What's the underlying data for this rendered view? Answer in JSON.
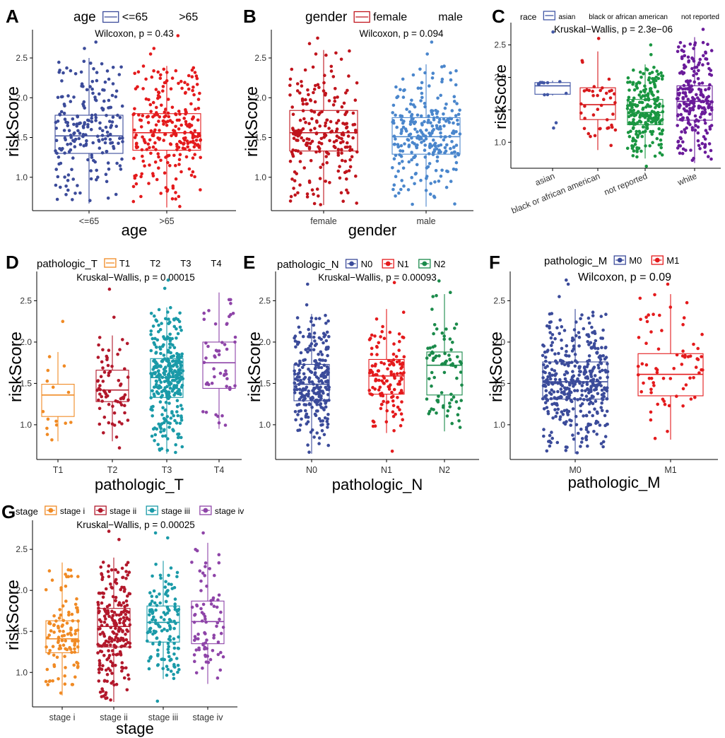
{
  "chart_data": [
    {
      "id": "A",
      "type": "boxplot",
      "letter": "A",
      "legend_title": "age",
      "legend_labels": [
        "<=65",
        ">65"
      ],
      "legend_style": "first-key-only",
      "test": "Wilcoxon, p = 0.43",
      "xlabel": "age",
      "ylabel": "riskScore",
      "ylim": [
        0.58,
        2.82
      ],
      "yticks": [
        "1.0",
        "1.5",
        "2.0",
        "2.5"
      ],
      "ytick_values": [
        1.0,
        1.5,
        2.0,
        2.5
      ],
      "categories": [
        "<=65",
        ">65"
      ],
      "colors": [
        "#3b4b9a",
        "#e41a1c"
      ],
      "n": [
        210,
        260
      ],
      "stats": [
        {
          "min": 0.67,
          "q1": 1.3,
          "median": 1.52,
          "q3": 1.78,
          "max": 2.5
        },
        {
          "min": 0.62,
          "q1": 1.34,
          "median": 1.56,
          "q3": 1.8,
          "max": 2.4
        }
      ],
      "outliers": [
        [
          2.62,
          2.7
        ],
        [
          2.55,
          2.62,
          2.78
        ]
      ]
    },
    {
      "id": "B",
      "type": "boxplot",
      "letter": "B",
      "legend_title": "gender",
      "legend_labels": [
        "female",
        "male"
      ],
      "legend_style": "first-key-only",
      "test": "Wilcoxon, p = 0.094",
      "xlabel": "gender",
      "ylabel": "riskScore",
      "ylim": [
        0.58,
        2.82
      ],
      "yticks": [
        "1.0",
        "1.5",
        "2.0",
        "2.5"
      ],
      "ytick_values": [
        1.0,
        1.5,
        2.0,
        2.5
      ],
      "categories": [
        "female",
        "male"
      ],
      "colors": [
        "#c0141c",
        "#4a86cc"
      ],
      "n": [
        230,
        260
      ],
      "stats": [
        {
          "min": 0.65,
          "q1": 1.33,
          "median": 1.56,
          "q3": 1.84,
          "max": 2.6
        },
        {
          "min": 0.63,
          "q1": 1.29,
          "median": 1.51,
          "q3": 1.75,
          "max": 2.42
        }
      ],
      "outliers": [
        [
          2.68,
          2.75
        ],
        [
          2.55,
          2.7
        ]
      ]
    },
    {
      "id": "C",
      "type": "boxplot",
      "letter": "C",
      "legend_title": "race",
      "legend_labels": [
        "asian",
        "black or african american",
        "not reported",
        "white"
      ],
      "legend_style": "first-key-only",
      "test": "Kruskal−Wallis, p = 2.3e−06",
      "xlabel": "",
      "ylabel": "riskScore",
      "ylim": [
        0.6,
        2.8
      ],
      "yticks": [
        "1.0",
        "1.5",
        "2.0",
        "2.5"
      ],
      "ytick_values": [
        1.0,
        1.5,
        2.0,
        2.5
      ],
      "categories": [
        "asian",
        "black or african american",
        "not reported",
        "white"
      ],
      "rotate_xticks": true,
      "colors": [
        "#4257a5",
        "#d7191c",
        "#1a9641",
        "#6a1b9a"
      ],
      "n": [
        10,
        40,
        230,
        220
      ],
      "stats": [
        {
          "min": 1.72,
          "q1": 1.74,
          "median": 1.87,
          "q3": 1.92,
          "max": 1.95
        },
        {
          "min": 0.88,
          "q1": 1.35,
          "median": 1.58,
          "q3": 1.84,
          "max": 2.4
        },
        {
          "min": 0.75,
          "q1": 1.27,
          "median": 1.46,
          "q3": 1.66,
          "max": 2.2
        },
        {
          "min": 0.68,
          "q1": 1.34,
          "median": 1.63,
          "q3": 1.87,
          "max": 2.62
        }
      ],
      "outliers": [
        [
          1.22,
          1.3,
          2.7
        ],
        [
          2.6
        ],
        [
          2.35,
          2.5,
          0.63
        ],
        [
          2.74
        ]
      ]
    },
    {
      "id": "D",
      "type": "boxplot",
      "letter": "D",
      "legend_title": "pathologic_T",
      "legend_labels": [
        "T1",
        "T2",
        "T3",
        "T4"
      ],
      "legend_style": "first-key-only",
      "test": "Kruskal−Wallis, p = 0.00015",
      "xlabel": "pathologic_T",
      "ylabel": "riskScore",
      "ylim": [
        0.58,
        2.82
      ],
      "yticks": [
        "1.0",
        "1.5",
        "2.0",
        "2.5"
      ],
      "ytick_values": [
        1.0,
        1.5,
        2.0,
        2.5
      ],
      "categories": [
        "T1",
        "T2",
        "T3",
        "T4"
      ],
      "colors": [
        "#f08a24",
        "#b2182b",
        "#1a9aa8",
        "#8e44a8"
      ],
      "n": [
        15,
        70,
        330,
        50
      ],
      "stats": [
        {
          "min": 0.8,
          "q1": 1.1,
          "median": 1.36,
          "q3": 1.49,
          "max": 1.88
        },
        {
          "min": 0.8,
          "q1": 1.28,
          "median": 1.42,
          "q3": 1.66,
          "max": 2.08
        },
        {
          "min": 0.65,
          "q1": 1.33,
          "median": 1.57,
          "q3": 1.8,
          "max": 2.42
        },
        {
          "min": 0.95,
          "q1": 1.44,
          "median": 1.75,
          "q3": 2.0,
          "max": 2.6
        }
      ],
      "outliers": [
        [
          2.25
        ],
        [
          2.3,
          2.64,
          0.72
        ],
        [
          2.65,
          2.75
        ],
        []
      ]
    },
    {
      "id": "E",
      "type": "boxplot",
      "letter": "E",
      "legend_title": "pathologic_N",
      "legend_labels": [
        "N0",
        "N1",
        "N2"
      ],
      "legend_style": "all-keys",
      "test": "Kruskal−Wallis, p = 0.00093",
      "xlabel": "pathologic_N",
      "ylabel": "riskScore",
      "ylim": [
        0.58,
        2.82
      ],
      "yticks": [
        "1.0",
        "1.5",
        "2.0",
        "2.5"
      ],
      "ytick_values": [
        1.0,
        1.5,
        2.0,
        2.5
      ],
      "categories": [
        "N0",
        "N1",
        "N2"
      ],
      "colors": [
        "#3b4b9a",
        "#e41a1c",
        "#1a8a4a"
      ],
      "n": [
        260,
        130,
        80
      ],
      "stats": [
        {
          "min": 0.65,
          "q1": 1.29,
          "median": 1.49,
          "q3": 1.73,
          "max": 2.34
        },
        {
          "min": 0.9,
          "q1": 1.37,
          "median": 1.59,
          "q3": 1.79,
          "max": 2.4
        },
        {
          "min": 0.92,
          "q1": 1.36,
          "median": 1.72,
          "q3": 1.88,
          "max": 2.58
        }
      ],
      "outliers": [
        [
          2.45,
          2.7
        ],
        [
          2.72,
          0.68
        ],
        [
          2.6,
          2.74
        ]
      ]
    },
    {
      "id": "F",
      "type": "boxplot",
      "letter": "F",
      "legend_title": "pathologic_M",
      "legend_labels": [
        "M0",
        "M1"
      ],
      "legend_style": "all-keys-box",
      "test": "Wilcoxon, p = 0.09",
      "xlabel": "pathologic_M",
      "ylabel": "riskScore",
      "ylim": [
        0.58,
        2.82
      ],
      "yticks": [
        "1.0",
        "1.5",
        "2.0",
        "2.5"
      ],
      "ytick_values": [
        1.0,
        1.5,
        2.0,
        2.5
      ],
      "categories": [
        "M0",
        "M1"
      ],
      "colors": [
        "#3b4b9a",
        "#e41a1c"
      ],
      "n": [
        420,
        70
      ],
      "stats": [
        {
          "min": 0.65,
          "q1": 1.31,
          "median": 1.52,
          "q3": 1.76,
          "max": 2.4
        },
        {
          "min": 0.82,
          "q1": 1.35,
          "median": 1.61,
          "q3": 1.86,
          "max": 2.58
        }
      ],
      "outliers": [
        [
          2.55,
          2.7,
          2.75
        ],
        [
          2.7
        ]
      ]
    },
    {
      "id": "G",
      "type": "boxplot",
      "letter": "G",
      "legend_title": "stage",
      "legend_labels": [
        "stage i",
        "stage ii",
        "stage iii",
        "stage iv"
      ],
      "legend_style": "all-keys-box",
      "test": "Kruskal−Wallis, p = 0.00025",
      "xlabel": "stage",
      "ylabel": "riskScore",
      "ylim": [
        0.58,
        2.82
      ],
      "yticks": [
        "1.0",
        "1.5",
        "2.0",
        "2.5"
      ],
      "ytick_values": [
        1.0,
        1.5,
        2.0,
        2.5
      ],
      "categories": [
        "stage i",
        "stage ii",
        "stage iii",
        "stage iv"
      ],
      "colors": [
        "#f08a24",
        "#b2182b",
        "#1a9aa8",
        "#8e44a8"
      ],
      "n": [
        110,
        230,
        140,
        80
      ],
      "stats": [
        {
          "min": 0.72,
          "q1": 1.24,
          "median": 1.41,
          "q3": 1.63,
          "max": 2.34
        },
        {
          "min": 0.64,
          "q1": 1.31,
          "median": 1.56,
          "q3": 1.78,
          "max": 2.4
        },
        {
          "min": 0.92,
          "q1": 1.37,
          "median": 1.61,
          "q3": 1.81,
          "max": 2.36
        },
        {
          "min": 0.86,
          "q1": 1.35,
          "median": 1.62,
          "q3": 1.87,
          "max": 2.58
        }
      ],
      "outliers": [
        [],
        [
          2.62,
          2.72
        ],
        [
          2.64,
          2.7,
          0.65
        ],
        [
          2.7
        ]
      ]
    }
  ]
}
